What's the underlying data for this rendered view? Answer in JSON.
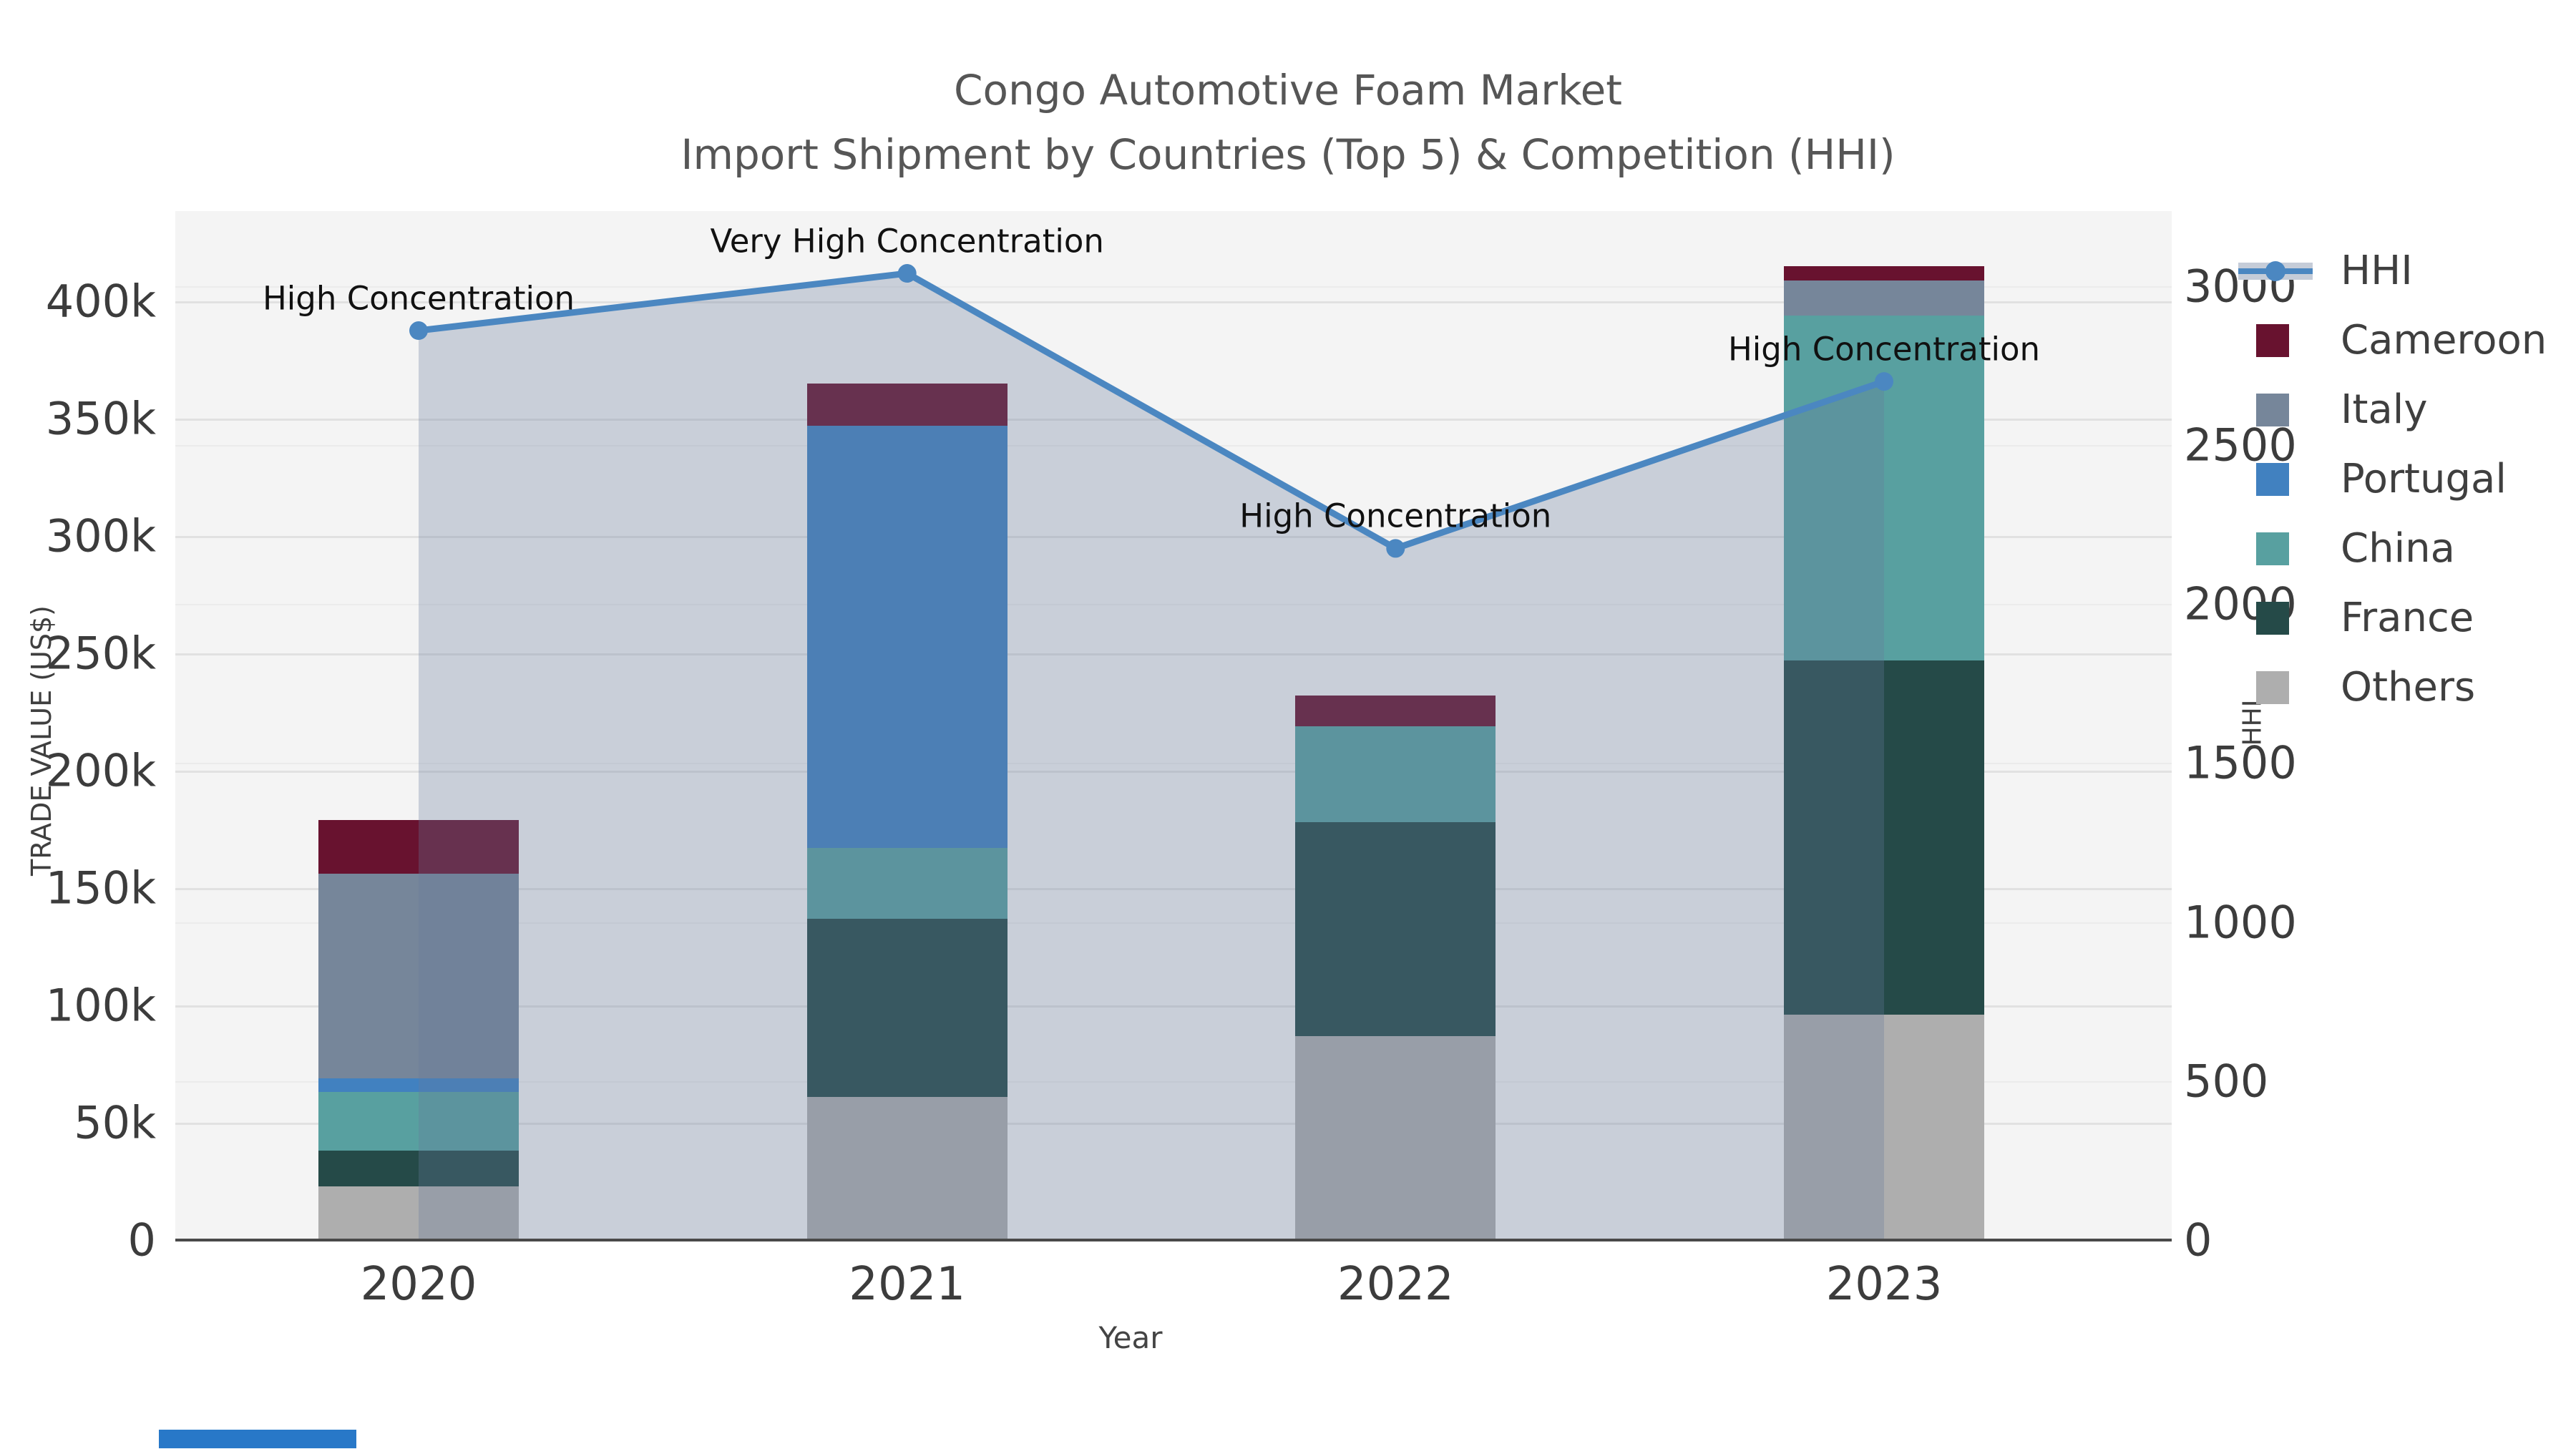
{
  "title": {
    "line1": "Congo Automotive Foam Market",
    "line2": "Import Shipment by Countries (Top 5) & Competition (HHI)"
  },
  "axes": {
    "x": {
      "label": "Year",
      "tick_labels": [
        "2020",
        "2021",
        "2022",
        "2023"
      ]
    },
    "y_left": {
      "label": "TRADE VALUE (US$)",
      "tick_labels": [
        "0",
        "50k",
        "100k",
        "150k",
        "200k",
        "250k",
        "300k",
        "350k",
        "400k"
      ],
      "tick_values_k": [
        0,
        50,
        100,
        150,
        200,
        250,
        300,
        350,
        400
      ]
    },
    "y_right": {
      "label": "HHI",
      "tick_labels": [
        "0",
        "500",
        "1000",
        "1500",
        "2000",
        "2500",
        "3000"
      ],
      "tick_values": [
        0,
        500,
        1000,
        1500,
        2000,
        2500,
        3000
      ]
    }
  },
  "chart_data": {
    "type": "bar",
    "subtype": "stacked bars (left axis, trade value US$) + HHI line with markers and area fill (right axis)",
    "categories": [
      "2020",
      "2021",
      "2022",
      "2023"
    ],
    "stack_order_bottom_to_top": [
      "Others",
      "France",
      "China",
      "Portugal",
      "Italy",
      "Cameroon"
    ],
    "series": [
      {
        "name": "Others",
        "color": "#aeaeae",
        "values_k_usd": [
          23,
          61,
          87,
          96
        ]
      },
      {
        "name": "France",
        "color": "#254a48",
        "values_k_usd": [
          15,
          76,
          91,
          151
        ]
      },
      {
        "name": "China",
        "color": "#58a0a0",
        "values_k_usd": [
          25,
          30,
          41,
          147
        ]
      },
      {
        "name": "Portugal",
        "color": "#4181c0",
        "values_k_usd": [
          6,
          180,
          0,
          0
        ]
      },
      {
        "name": "Italy",
        "color": "#76869a",
        "values_k_usd": [
          87,
          0,
          0,
          15
        ]
      },
      {
        "name": "Cameroon",
        "color": "#68122f",
        "values_k_usd": [
          23,
          18,
          13,
          6
        ]
      }
    ],
    "line": {
      "name": "HHI",
      "axis": "right",
      "color": "#4b87c1",
      "area_fill": "rgba(104,121,154,0.30)",
      "values": [
        2860,
        3040,
        2175,
        2700
      ]
    },
    "annotations": [
      {
        "point_index": 0,
        "text": "High Concentration"
      },
      {
        "point_index": 1,
        "text": "Very High Concentration"
      },
      {
        "point_index": 2,
        "text": "High Concentration"
      },
      {
        "point_index": 3,
        "text": "High Concentration"
      }
    ],
    "title": "Congo Automotive Foam Market — Import Shipment by Countries (Top 5) & Competition (HHI)",
    "xlabel": "Year",
    "ylabel_left": "TRADE VALUE (US$)",
    "ylabel_right": "HHI",
    "ylim_left_k": [
      0,
      438
    ],
    "ylim_right": [
      0,
      3235
    ],
    "grid": true,
    "legend_position": "right"
  },
  "legend": {
    "items": [
      {
        "label": "HHI",
        "type": "line",
        "color": "#4b87c1",
        "band_color": "#c5ccd8"
      },
      {
        "label": "Cameroon",
        "type": "patch",
        "color": "#68122f"
      },
      {
        "label": "Italy",
        "type": "patch",
        "color": "#76869a"
      },
      {
        "label": "Portugal",
        "type": "patch",
        "color": "#4181c0"
      },
      {
        "label": "China",
        "type": "patch",
        "color": "#58a0a0"
      },
      {
        "label": "France",
        "type": "patch",
        "color": "#254a48"
      },
      {
        "label": "Others",
        "type": "patch",
        "color": "#aeaeae"
      }
    ]
  },
  "colors": {
    "plot_background": "#f4f4f4",
    "page_background": "#ffffff",
    "axis_line": "#4a4a4a",
    "grid_left": "#e1e1e1",
    "grid_right": "#ebebeb",
    "tick_text": "#3c3c3c",
    "title_text": "#565656",
    "annotation_text": "#111111",
    "corner_strip": "#2878c8"
  }
}
